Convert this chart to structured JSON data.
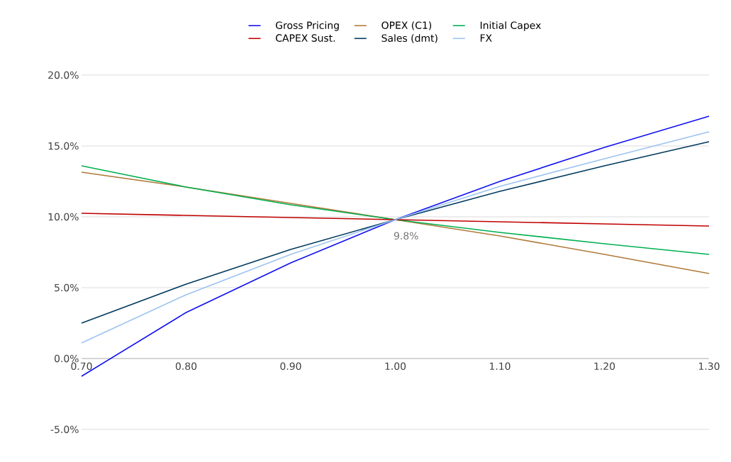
{
  "chart_data": {
    "type": "line",
    "x": [
      0.7,
      0.8,
      0.9,
      1.0,
      1.1,
      1.2,
      1.3
    ],
    "series": [
      {
        "name": "Gross  Pricing",
        "color": "#1010f0",
        "values": [
          -1.25,
          3.25,
          6.75,
          9.8,
          12.5,
          14.9,
          17.1
        ]
      },
      {
        "name": "OPEX (C1)",
        "color": "#b07a3a",
        "values": [
          13.15,
          12.1,
          10.95,
          9.8,
          8.65,
          7.35,
          6.0
        ]
      },
      {
        "name": "Initial Capex",
        "color": "#00b050",
        "values": [
          13.6,
          12.1,
          10.85,
          9.8,
          8.9,
          8.1,
          7.35
        ]
      },
      {
        "name": "CAPEX Sust.",
        "color": "#c00000",
        "values": [
          10.25,
          10.1,
          9.95,
          9.8,
          9.65,
          9.5,
          9.35
        ]
      },
      {
        "name": "Sales (dmt)",
        "color": "#003a5c",
        "values": [
          2.5,
          5.25,
          7.7,
          9.8,
          11.8,
          13.6,
          15.3
        ]
      },
      {
        "name": "FX",
        "color": "#9dc3f0",
        "values": [
          1.1,
          4.5,
          7.35,
          9.8,
          12.15,
          14.1,
          16.0
        ]
      }
    ],
    "xlim": [
      0.7,
      1.3
    ],
    "xticks": [
      {
        "value": 0.7,
        "label": "0.70"
      },
      {
        "value": 0.8,
        "label": "0.80"
      },
      {
        "value": 0.9,
        "label": "0.90"
      },
      {
        "value": 1.0,
        "label": "1.00"
      },
      {
        "value": 1.1,
        "label": "1.10"
      },
      {
        "value": 1.2,
        "label": "1.20"
      },
      {
        "value": 1.3,
        "label": "1.30"
      }
    ],
    "ylim": [
      -5,
      20
    ],
    "yticks": [
      {
        "value": -5,
        "label": "-5.0%"
      },
      {
        "value": 0,
        "label": "0.0%"
      },
      {
        "value": 5,
        "label": "5.0%"
      },
      {
        "value": 10,
        "label": "10.0%"
      },
      {
        "value": 15,
        "label": "15.0%"
      },
      {
        "value": 20,
        "label": "20.0%"
      }
    ],
    "grid": "y",
    "legend": "top",
    "marker": "none",
    "line_style": "solid",
    "annotations": [
      {
        "text": "9.8%",
        "x": 1.0,
        "y": 9.8
      }
    ]
  }
}
